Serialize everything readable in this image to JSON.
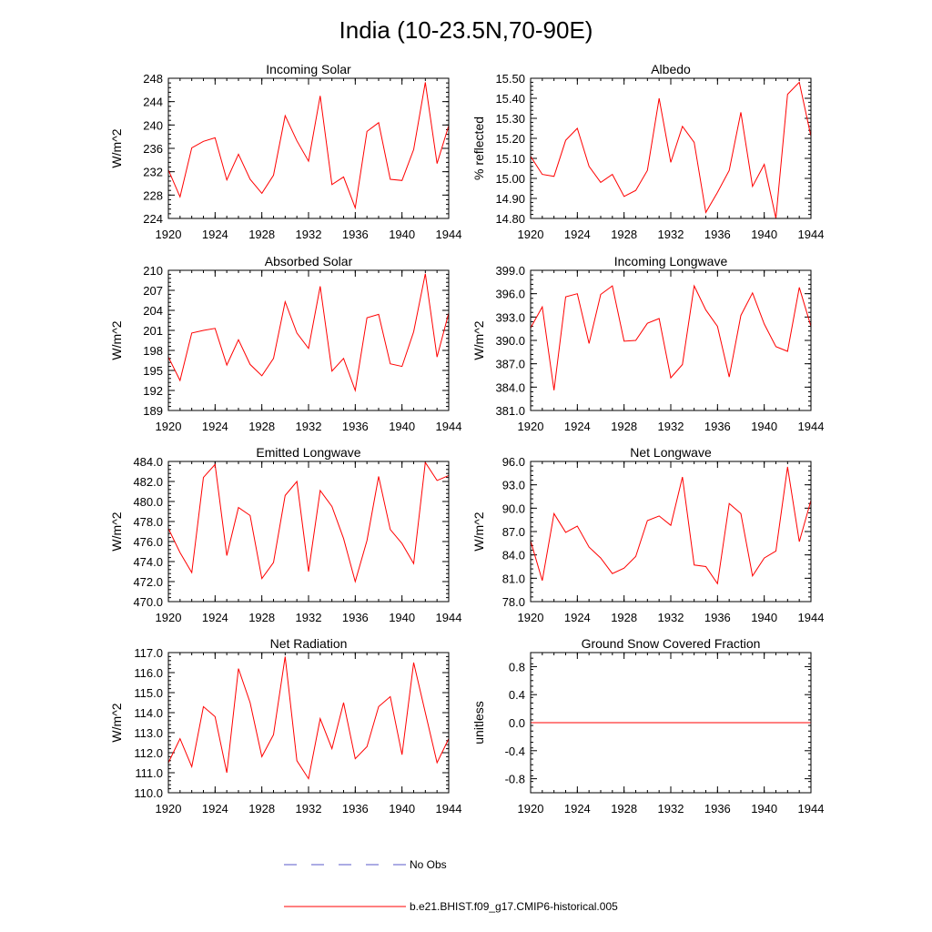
{
  "figure": {
    "title": "India (10-23.5N,70-90E)",
    "background": "#ffffff",
    "model_color": "#ff0000",
    "obs_color": "#5a5ac8"
  },
  "legend": {
    "obs_label": "No Obs",
    "model_label": "b.e21.BHIST.f09_g17.CMIP6-historical.005"
  },
  "chart_data": [
    {
      "id": "incoming-solar",
      "type": "line",
      "title": "Incoming Solar",
      "ylabel": "W/m^2",
      "xlabel": "",
      "xlim": [
        1920,
        1944
      ],
      "ylim": [
        224,
        248
      ],
      "xticks": [
        1920,
        1924,
        1928,
        1932,
        1936,
        1940,
        1944
      ],
      "yticks": [
        224,
        228,
        232,
        236,
        240,
        244,
        248
      ],
      "ytick_labels": [
        "224",
        "228",
        "232",
        "236",
        "240",
        "244",
        "248"
      ],
      "series": [
        {
          "name": "b.e21.BHIST.f09_g17.CMIP6-historical.005",
          "x": [
            1920,
            1921,
            1922,
            1923,
            1924,
            1925,
            1926,
            1927,
            1928,
            1929,
            1930,
            1931,
            1932,
            1933,
            1934,
            1935,
            1936,
            1937,
            1938,
            1939,
            1940,
            1941,
            1942,
            1943,
            1944
          ],
          "values": [
            232.3,
            227.7,
            236.1,
            237.2,
            237.8,
            230.6,
            235.0,
            230.7,
            228.3,
            231.4,
            241.6,
            237.3,
            233.8,
            245.0,
            229.8,
            231.1,
            225.8,
            238.9,
            240.4,
            230.7,
            230.5,
            235.8,
            247.3,
            233.4,
            239.9
          ]
        }
      ]
    },
    {
      "id": "albedo",
      "type": "line",
      "title": "Albedo",
      "ylabel": "% reflected",
      "xlabel": "",
      "xlim": [
        1920,
        1944
      ],
      "ylim": [
        14.8,
        15.5
      ],
      "xticks": [
        1920,
        1924,
        1928,
        1932,
        1936,
        1940,
        1944
      ],
      "yticks": [
        14.8,
        14.9,
        15.0,
        15.1,
        15.2,
        15.3,
        15.4,
        15.5
      ],
      "ytick_labels": [
        "14.80",
        "14.90",
        "15.00",
        "15.10",
        "15.20",
        "15.30",
        "15.40",
        "15.50"
      ],
      "series": [
        {
          "name": "b.e21.BHIST.f09_g17.CMIP6-historical.005",
          "x": [
            1920,
            1921,
            1922,
            1923,
            1924,
            1925,
            1926,
            1927,
            1928,
            1929,
            1930,
            1931,
            1932,
            1933,
            1934,
            1935,
            1936,
            1937,
            1938,
            1939,
            1940,
            1941,
            1942,
            1943,
            1944
          ],
          "values": [
            15.11,
            15.02,
            15.01,
            15.19,
            15.25,
            15.06,
            14.98,
            15.02,
            14.91,
            14.94,
            15.04,
            15.4,
            15.08,
            15.26,
            15.18,
            14.83,
            14.93,
            15.04,
            15.33,
            14.96,
            15.07,
            14.8,
            15.42,
            15.48,
            15.21
          ]
        }
      ]
    },
    {
      "id": "absorbed-solar",
      "type": "line",
      "title": "Absorbed Solar",
      "ylabel": "W/m^2",
      "xlabel": "",
      "xlim": [
        1920,
        1944
      ],
      "ylim": [
        189,
        210
      ],
      "xticks": [
        1920,
        1924,
        1928,
        1932,
        1936,
        1940,
        1944
      ],
      "yticks": [
        189,
        192,
        195,
        198,
        201,
        204,
        207,
        210
      ],
      "ytick_labels": [
        "189",
        "192",
        "195",
        "198",
        "201",
        "204",
        "207",
        "210"
      ],
      "series": [
        {
          "name": "b.e21.BHIST.f09_g17.CMIP6-historical.005",
          "x": [
            1920,
            1921,
            1922,
            1923,
            1924,
            1925,
            1926,
            1927,
            1928,
            1929,
            1930,
            1931,
            1932,
            1933,
            1934,
            1935,
            1936,
            1937,
            1938,
            1939,
            1940,
            1941,
            1942,
            1943,
            1944
          ],
          "values": [
            197.0,
            193.5,
            200.6,
            201.0,
            201.3,
            195.8,
            199.6,
            195.9,
            194.2,
            196.8,
            205.3,
            200.6,
            198.3,
            207.6,
            194.9,
            196.8,
            192.0,
            202.9,
            203.4,
            196.0,
            195.6,
            200.8,
            209.5,
            197.0,
            203.6
          ]
        }
      ]
    },
    {
      "id": "incoming-longwave",
      "type": "line",
      "title": "Incoming Longwave",
      "ylabel": "W/m^2",
      "xlabel": "",
      "xlim": [
        1920,
        1944
      ],
      "ylim": [
        381,
        399
      ],
      "xticks": [
        1920,
        1924,
        1928,
        1932,
        1936,
        1940,
        1944
      ],
      "yticks": [
        381,
        384,
        387,
        390,
        393,
        396,
        399
      ],
      "ytick_labels": [
        "381.0",
        "384.0",
        "387.0",
        "390.0",
        "393.0",
        "396.0",
        "399.0"
      ],
      "series": [
        {
          "name": "b.e21.BHIST.f09_g17.CMIP6-historical.005",
          "x": [
            1920,
            1921,
            1922,
            1923,
            1924,
            1925,
            1926,
            1927,
            1928,
            1929,
            1930,
            1931,
            1932,
            1933,
            1934,
            1935,
            1936,
            1937,
            1938,
            1939,
            1940,
            1941,
            1942,
            1943,
            1944
          ],
          "values": [
            391.6,
            394.3,
            383.6,
            395.6,
            396.0,
            389.6,
            395.9,
            397.0,
            389.9,
            390.0,
            392.2,
            392.8,
            385.2,
            386.9,
            397.0,
            393.9,
            391.8,
            385.3,
            393.2,
            396.1,
            392.1,
            389.2,
            388.6,
            396.8,
            391.8
          ]
        }
      ]
    },
    {
      "id": "emitted-longwave",
      "type": "line",
      "title": "Emitted Longwave",
      "ylabel": "W/m^2",
      "xlabel": "",
      "xlim": [
        1920,
        1944
      ],
      "ylim": [
        470,
        484
      ],
      "xticks": [
        1920,
        1924,
        1928,
        1932,
        1936,
        1940,
        1944
      ],
      "yticks": [
        470,
        472,
        474,
        476,
        478,
        480,
        482,
        484
      ],
      "ytick_labels": [
        "470.0",
        "472.0",
        "474.0",
        "476.0",
        "478.0",
        "480.0",
        "482.0",
        "484.0"
      ],
      "series": [
        {
          "name": "b.e21.BHIST.f09_g17.CMIP6-historical.005",
          "x": [
            1920,
            1921,
            1922,
            1923,
            1924,
            1925,
            1926,
            1927,
            1928,
            1929,
            1930,
            1931,
            1932,
            1933,
            1934,
            1935,
            1936,
            1937,
            1938,
            1939,
            1940,
            1941,
            1942,
            1943,
            1944
          ],
          "values": [
            477.3,
            474.9,
            472.9,
            482.4,
            483.7,
            474.6,
            479.4,
            478.6,
            472.3,
            473.9,
            480.6,
            482.0,
            473.0,
            481.1,
            479.5,
            476.3,
            472.0,
            476.1,
            482.5,
            477.2,
            475.8,
            473.8,
            483.9,
            482.1,
            482.6
          ]
        }
      ]
    },
    {
      "id": "net-longwave",
      "type": "line",
      "title": "Net Longwave",
      "ylabel": "W/m^2",
      "xlabel": "",
      "xlim": [
        1920,
        1944
      ],
      "ylim": [
        78,
        96
      ],
      "xticks": [
        1920,
        1924,
        1928,
        1932,
        1936,
        1940,
        1944
      ],
      "yticks": [
        78,
        81,
        84,
        87,
        90,
        93,
        96
      ],
      "ytick_labels": [
        "78.0",
        "81.0",
        "84.0",
        "87.0",
        "90.0",
        "93.0",
        "96.0"
      ],
      "series": [
        {
          "name": "b.e21.BHIST.f09_g17.CMIP6-historical.005",
          "x": [
            1920,
            1921,
            1922,
            1923,
            1924,
            1925,
            1926,
            1927,
            1928,
            1929,
            1930,
            1931,
            1932,
            1933,
            1934,
            1935,
            1936,
            1937,
            1938,
            1939,
            1940,
            1941,
            1942,
            1943,
            1944
          ],
          "values": [
            85.8,
            80.7,
            89.3,
            86.9,
            87.7,
            85.0,
            83.6,
            81.6,
            82.3,
            83.8,
            88.4,
            89.0,
            87.8,
            94.0,
            82.7,
            82.5,
            80.3,
            90.6,
            89.3,
            81.3,
            83.6,
            84.5,
            95.3,
            85.7,
            91.0
          ]
        }
      ]
    },
    {
      "id": "net-radiation",
      "type": "line",
      "title": "Net Radiation",
      "ylabel": "W/m^2",
      "xlabel": "",
      "xlim": [
        1920,
        1944
      ],
      "ylim": [
        110,
        117
      ],
      "xticks": [
        1920,
        1924,
        1928,
        1932,
        1936,
        1940,
        1944
      ],
      "yticks": [
        110,
        111,
        112,
        113,
        114,
        115,
        116,
        117
      ],
      "ytick_labels": [
        "110.0",
        "111.0",
        "112.0",
        "113.0",
        "114.0",
        "115.0",
        "116.0",
        "117.0"
      ],
      "series": [
        {
          "name": "b.e21.BHIST.f09_g17.CMIP6-historical.005",
          "x": [
            1920,
            1921,
            1922,
            1923,
            1924,
            1925,
            1926,
            1927,
            1928,
            1929,
            1930,
            1931,
            1932,
            1933,
            1934,
            1935,
            1936,
            1937,
            1938,
            1939,
            1940,
            1941,
            1942,
            1943,
            1944
          ],
          "values": [
            111.5,
            112.7,
            111.3,
            114.3,
            113.8,
            111.0,
            116.2,
            114.5,
            111.8,
            112.9,
            116.8,
            111.6,
            110.7,
            113.7,
            112.2,
            114.5,
            111.7,
            112.3,
            114.3,
            114.8,
            111.9,
            116.5,
            114.0,
            111.5,
            112.7
          ]
        }
      ]
    },
    {
      "id": "ground-snow",
      "type": "line",
      "title": "Ground Snow Covered Fraction",
      "ylabel": "unitless",
      "xlabel": "",
      "xlim": [
        1920,
        1944
      ],
      "ylim": [
        -1.0,
        1.0
      ],
      "xticks": [
        1920,
        1924,
        1928,
        1932,
        1936,
        1940,
        1944
      ],
      "yticks": [
        -0.8,
        -0.4,
        0.0,
        0.4,
        0.8
      ],
      "ytick_labels": [
        "-0.8",
        "-0.4",
        "0.0",
        "0.4",
        "0.8"
      ],
      "series": [
        {
          "name": "b.e21.BHIST.f09_g17.CMIP6-historical.005",
          "x": [
            1920,
            1921,
            1922,
            1923,
            1924,
            1925,
            1926,
            1927,
            1928,
            1929,
            1930,
            1931,
            1932,
            1933,
            1934,
            1935,
            1936,
            1937,
            1938,
            1939,
            1940,
            1941,
            1942,
            1943,
            1944
          ],
          "values": [
            0,
            0,
            0,
            0,
            0,
            0,
            0,
            0,
            0,
            0,
            0,
            0,
            0,
            0,
            0,
            0,
            0,
            0,
            0,
            0,
            0,
            0,
            0,
            0,
            0
          ]
        }
      ]
    }
  ]
}
